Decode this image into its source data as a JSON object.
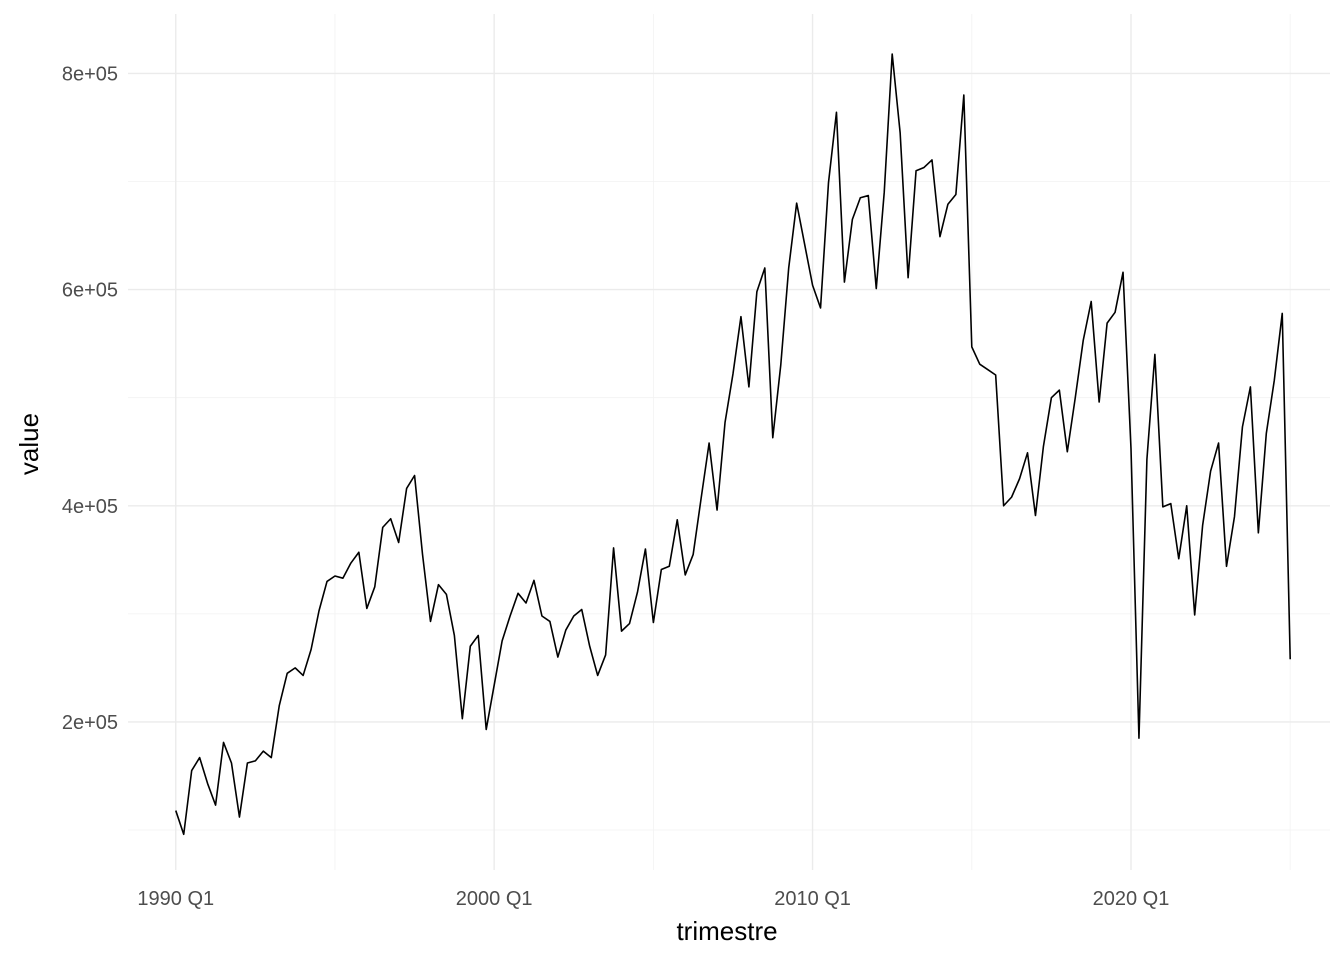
{
  "chart_data": {
    "type": "line",
    "xlabel": "trimestre",
    "ylabel": "value",
    "x_ticks": [
      "1990 Q1",
      "2000 Q1",
      "2010 Q1",
      "2020 Q1"
    ],
    "y_ticks": [
      "2e+05",
      "4e+05",
      "6e+05",
      "8e+05"
    ],
    "y_tick_values": [
      200000,
      400000,
      600000,
      800000
    ],
    "xlim": [
      "1988 Q3",
      "2026 Q2"
    ],
    "ylim": [
      63000,
      855000
    ],
    "grid": true,
    "legend": "none",
    "series": [
      {
        "x": [
          "1990 Q1",
          "1990 Q2",
          "1990 Q3",
          "1990 Q4",
          "1991 Q1",
          "1991 Q2",
          "1991 Q3",
          "1991 Q4",
          "1992 Q1",
          "1992 Q2",
          "1992 Q3",
          "1992 Q4",
          "1993 Q1",
          "1993 Q2",
          "1993 Q3",
          "1993 Q4",
          "1994 Q1",
          "1994 Q2",
          "1994 Q3",
          "1994 Q4",
          "1995 Q1",
          "1995 Q2",
          "1995 Q3",
          "1995 Q4",
          "1996 Q1",
          "1996 Q2",
          "1996 Q3",
          "1996 Q4",
          "1997 Q1",
          "1997 Q2",
          "1997 Q3",
          "1997 Q4",
          "1998 Q1",
          "1998 Q2",
          "1998 Q3",
          "1998 Q4",
          "1999 Q1",
          "1999 Q2",
          "1999 Q3",
          "1999 Q4",
          "2000 Q1",
          "2000 Q2",
          "2000 Q3",
          "2000 Q4",
          "2001 Q1",
          "2001 Q2",
          "2001 Q3",
          "2001 Q4",
          "2002 Q1",
          "2002 Q2",
          "2002 Q3",
          "2002 Q4",
          "2003 Q1",
          "2003 Q2",
          "2003 Q3",
          "2003 Q4",
          "2004 Q1",
          "2004 Q2",
          "2004 Q3",
          "2004 Q4",
          "2005 Q1",
          "2005 Q2",
          "2005 Q3",
          "2005 Q4",
          "2006 Q1",
          "2006 Q2",
          "2006 Q3",
          "2006 Q4",
          "2007 Q1",
          "2007 Q2",
          "2007 Q3",
          "2007 Q4",
          "2008 Q1",
          "2008 Q2",
          "2008 Q3",
          "2008 Q4",
          "2009 Q1",
          "2009 Q2",
          "2009 Q3",
          "2009 Q4",
          "2010 Q1",
          "2010 Q2",
          "2010 Q3",
          "2010 Q4",
          "2011 Q1",
          "2011 Q2",
          "2011 Q3",
          "2011 Q4",
          "2012 Q1",
          "2012 Q2",
          "2012 Q3",
          "2012 Q4",
          "2013 Q1",
          "2013 Q2",
          "2013 Q3",
          "2013 Q4",
          "2014 Q1",
          "2014 Q2",
          "2014 Q3",
          "2014 Q4",
          "2015 Q1",
          "2015 Q2",
          "2015 Q3",
          "2015 Q4",
          "2016 Q1",
          "2016 Q2",
          "2016 Q3",
          "2016 Q4",
          "2017 Q1",
          "2017 Q2",
          "2017 Q3",
          "2017 Q4",
          "2018 Q1",
          "2018 Q2",
          "2018 Q3",
          "2018 Q4",
          "2019 Q1",
          "2019 Q2",
          "2019 Q3",
          "2019 Q4",
          "2020 Q1",
          "2020 Q2",
          "2020 Q3",
          "2020 Q4",
          "2021 Q1",
          "2021 Q2",
          "2021 Q3",
          "2021 Q4",
          "2022 Q1",
          "2022 Q2",
          "2022 Q3",
          "2022 Q4",
          "2023 Q1",
          "2023 Q2",
          "2023 Q3",
          "2023 Q4",
          "2024 Q1",
          "2024 Q2",
          "2024 Q3",
          "2024 Q4",
          "2025 Q1"
        ],
        "values": [
          118000,
          96000,
          155000,
          167000,
          143000,
          123000,
          181000,
          162000,
          112000,
          162000,
          164000,
          173000,
          167000,
          215000,
          245000,
          250000,
          243000,
          267000,
          303000,
          330000,
          335000,
          333000,
          347000,
          357000,
          305000,
          325000,
          380000,
          388000,
          366000,
          416000,
          428000,
          355000,
          293000,
          327000,
          318000,
          280000,
          203000,
          270000,
          280000,
          193000,
          234000,
          275000,
          298000,
          319000,
          310000,
          331000,
          298000,
          293000,
          260000,
          285000,
          298000,
          304000,
          270000,
          243000,
          262000,
          361000,
          284000,
          291000,
          320000,
          360000,
          292000,
          341000,
          344000,
          387000,
          336000,
          355000,
          407000,
          458000,
          396000,
          477000,
          522000,
          575000,
          510000,
          598000,
          620000,
          463000,
          530000,
          620000,
          680000,
          642000,
          604000,
          583000,
          699000,
          764000,
          607000,
          665000,
          685000,
          687000,
          601000,
          690000,
          818000,
          745000,
          611000,
          710000,
          713000,
          720000,
          649000,
          679000,
          688000,
          780000,
          547000,
          531000,
          526000,
          521000,
          400000,
          408000,
          425000,
          449000,
          391000,
          455000,
          500000,
          507000,
          450000,
          500000,
          553000,
          589000,
          496000,
          569000,
          579000,
          616000,
          453000,
          185000,
          443000,
          540000,
          399000,
          402000,
          351000,
          400000,
          299000,
          382000,
          432000,
          458000,
          344000,
          390000,
          473000,
          510000,
          375000,
          467000,
          516000,
          578000,
          258000
        ]
      }
    ]
  }
}
